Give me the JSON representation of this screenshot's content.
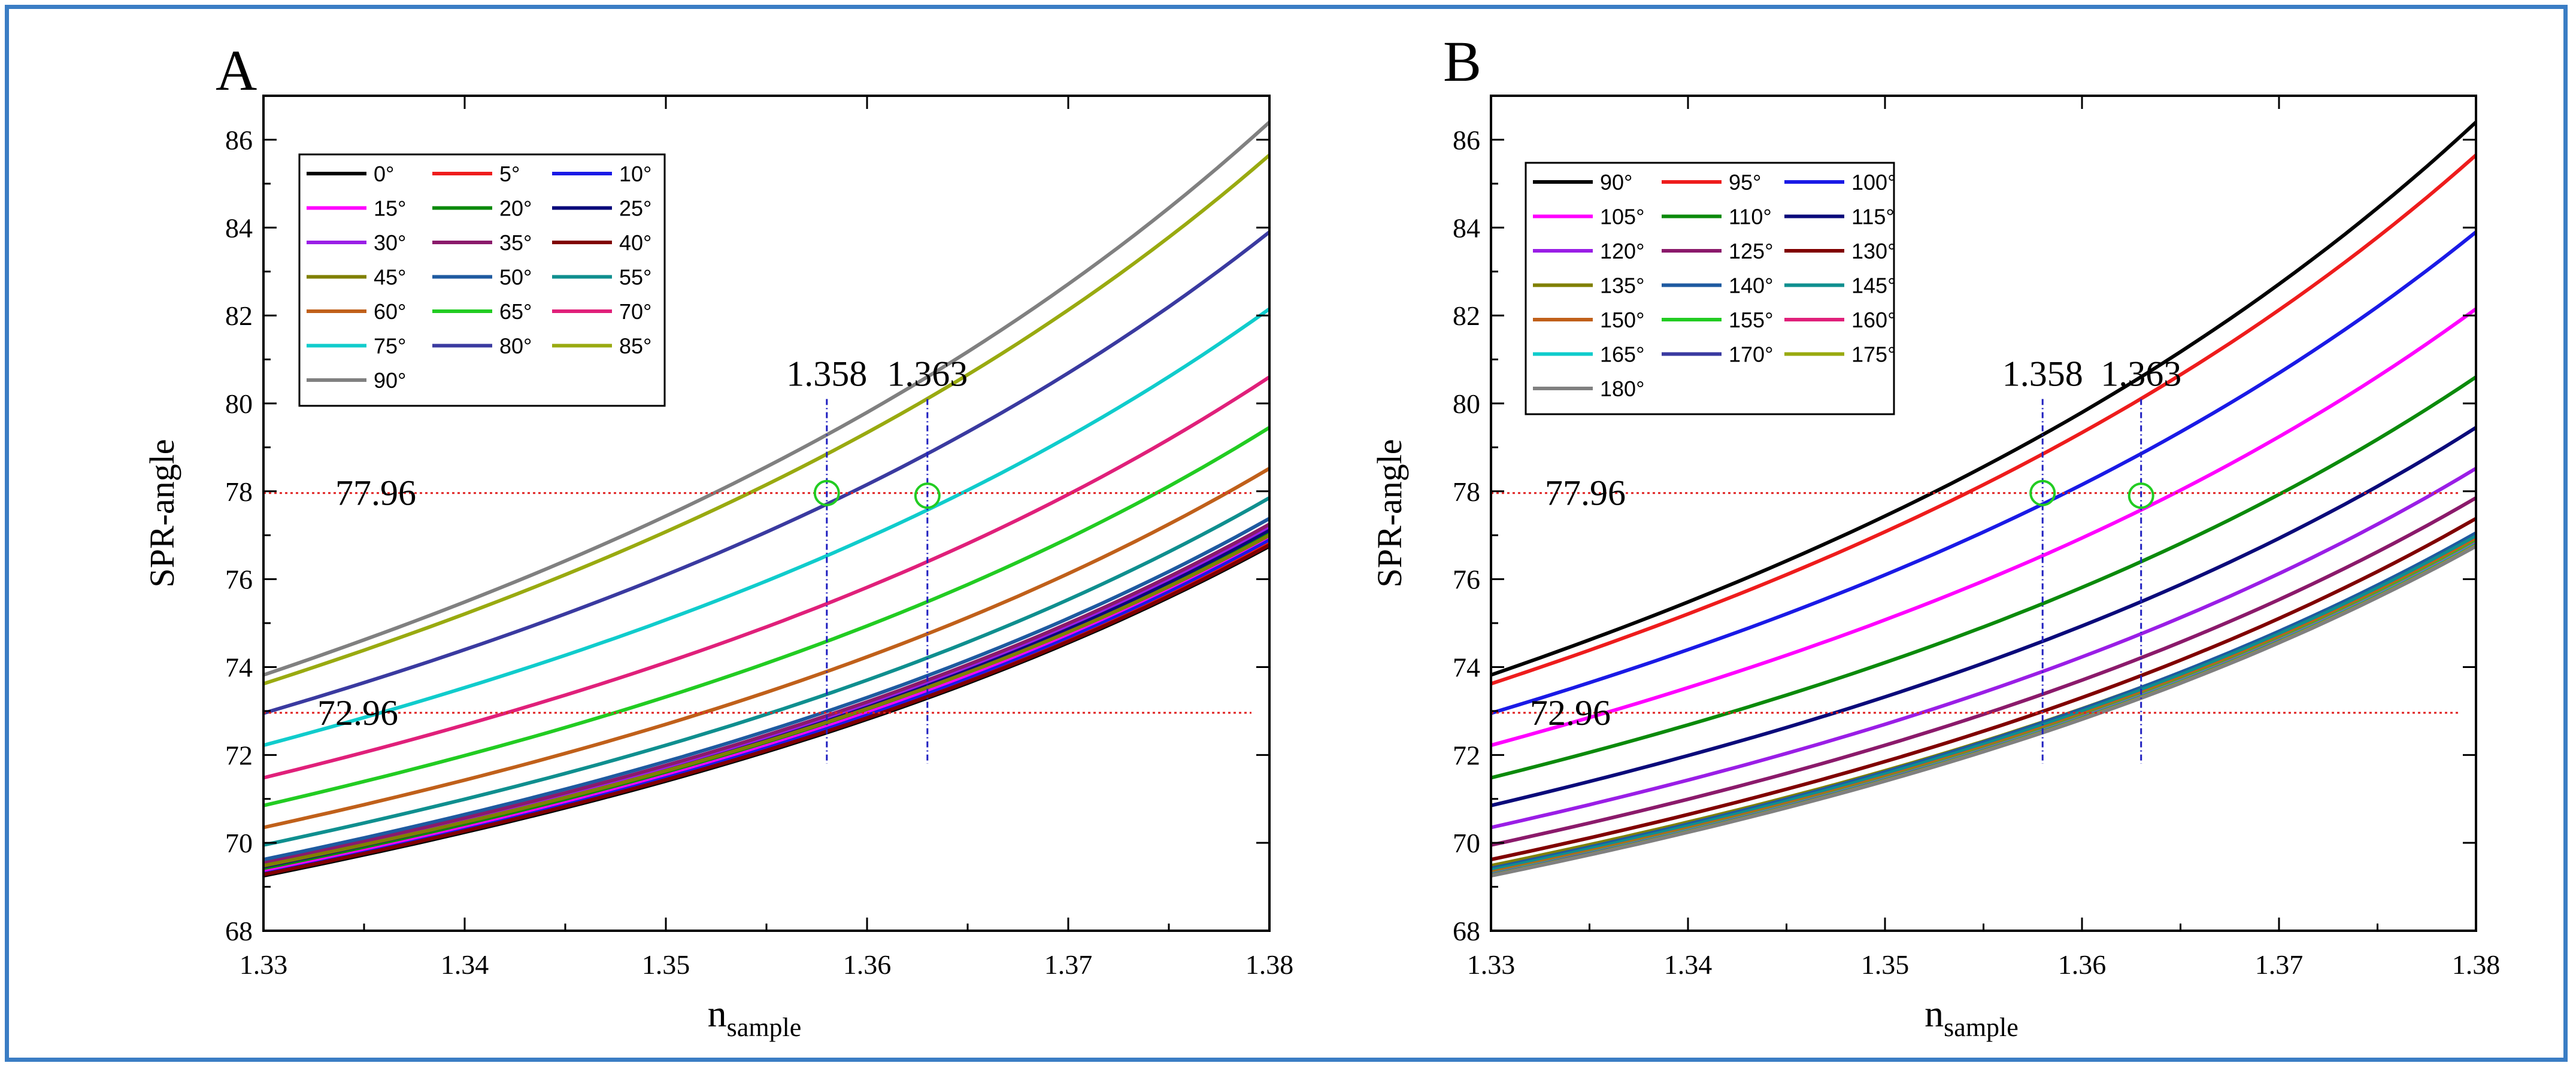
{
  "chart_data": [
    {
      "type": "line",
      "panel_label": "A",
      "ylabel": "SPR-angle",
      "xlabel_main": "n",
      "xlabel_sub": "sample",
      "xlim": [
        1.33,
        1.38
      ],
      "ylim": [
        68,
        87
      ],
      "xticks": [
        "1.33",
        "1.34",
        "1.35",
        "1.36",
        "1.37",
        "1.38"
      ],
      "yticks": [
        "68",
        "70",
        "72",
        "74",
        "76",
        "78",
        "80",
        "82",
        "84",
        "86"
      ],
      "legend_location": "top-left",
      "legend_columns": 3,
      "series": [
        {
          "name": "0°",
          "color": "#000000",
          "values": [
            69.25,
            76.75
          ]
        },
        {
          "name": "5°",
          "color": "#ee1c1c",
          "values": [
            69.3,
            76.85
          ]
        },
        {
          "name": "10°",
          "color": "#1a1ae6",
          "values": [
            69.33,
            76.9
          ]
        },
        {
          "name": "15°",
          "color": "#ff00ff",
          "values": [
            69.38,
            76.98
          ]
        },
        {
          "name": "20°",
          "color": "#0b8a0b",
          "values": [
            69.42,
            77.05
          ]
        },
        {
          "name": "25°",
          "color": "#0a0a7a",
          "values": [
            69.46,
            77.12
          ]
        },
        {
          "name": "30°",
          "color": "#9a1ee6",
          "values": [
            69.52,
            77.2
          ]
        },
        {
          "name": "35°",
          "color": "#8b1a6b",
          "values": [
            69.55,
            77.25
          ]
        },
        {
          "name": "40°",
          "color": "#800000",
          "values": [
            69.28,
            76.78
          ]
        },
        {
          "name": "45°",
          "color": "#808000",
          "values": [
            69.48,
            77.0
          ]
        },
        {
          "name": "50°",
          "color": "#1e5aa0",
          "values": [
            69.62,
            77.38
          ]
        },
        {
          "name": "55°",
          "color": "#0f8f8f",
          "values": [
            69.95,
            77.85
          ]
        },
        {
          "name": "60°",
          "color": "#c0601a",
          "values": [
            70.35,
            78.52
          ]
        },
        {
          "name": "65°",
          "color": "#22cc22",
          "values": [
            70.85,
            79.45
          ]
        },
        {
          "name": "70°",
          "color": "#e0207a",
          "values": [
            71.48,
            80.6
          ]
        },
        {
          "name": "75°",
          "color": "#10cccc",
          "values": [
            72.22,
            82.15
          ]
        },
        {
          "name": "80°",
          "color": "#3a3aa0",
          "values": [
            72.95,
            83.9
          ]
        },
        {
          "name": "85°",
          "color": "#99aa10",
          "values": [
            73.62,
            85.65
          ]
        },
        {
          "name": "90°",
          "color": "#808080",
          "values": [
            73.82,
            86.4
          ]
        }
      ],
      "reference_lines": {
        "horizontal": [
          "77.96",
          "72.96"
        ],
        "vertical": [
          "1.358",
          "1.363"
        ]
      },
      "marker_points": [
        [
          1.358,
          77.96
        ],
        [
          1.363,
          77.9
        ]
      ]
    },
    {
      "type": "line",
      "panel_label": "B",
      "ylabel": "SPR-angle",
      "xlabel_main": "n",
      "xlabel_sub": "sample",
      "xlim": [
        1.33,
        1.38
      ],
      "ylim": [
        68,
        87
      ],
      "xticks": [
        "1.33",
        "1.34",
        "1.35",
        "1.36",
        "1.37",
        "1.38"
      ],
      "yticks": [
        "68",
        "70",
        "72",
        "74",
        "76",
        "78",
        "80",
        "82",
        "84",
        "86"
      ],
      "legend_location": "top-left",
      "legend_columns": 3,
      "series": [
        {
          "name": "90°",
          "color": "#000000",
          "values": [
            73.82,
            86.4
          ]
        },
        {
          "name": "95°",
          "color": "#ee1c1c",
          "values": [
            73.62,
            85.65
          ]
        },
        {
          "name": "100°",
          "color": "#1a1ae6",
          "values": [
            72.95,
            83.9
          ]
        },
        {
          "name": "105°",
          "color": "#ff00ff",
          "values": [
            72.22,
            82.15
          ]
        },
        {
          "name": "110°",
          "color": "#0b8a0b",
          "values": [
            71.48,
            80.6
          ]
        },
        {
          "name": "115°",
          "color": "#0a0a7a",
          "values": [
            70.85,
            79.45
          ]
        },
        {
          "name": "120°",
          "color": "#9a1ee6",
          "values": [
            70.35,
            78.52
          ]
        },
        {
          "name": "125°",
          "color": "#8b1a6b",
          "values": [
            69.95,
            77.85
          ]
        },
        {
          "name": "130°",
          "color": "#800000",
          "values": [
            69.62,
            77.38
          ]
        },
        {
          "name": "135°",
          "color": "#808000",
          "values": [
            69.48,
            77.0
          ]
        },
        {
          "name": "140°",
          "color": "#1e5aa0",
          "values": [
            69.42,
            77.05
          ]
        },
        {
          "name": "145°",
          "color": "#0f8f8f",
          "values": [
            69.38,
            76.98
          ]
        },
        {
          "name": "150°",
          "color": "#c0601a",
          "values": [
            69.33,
            76.9
          ]
        },
        {
          "name": "155°",
          "color": "#22cc22",
          "values": [
            69.3,
            76.85
          ]
        },
        {
          "name": "160°",
          "color": "#e0207a",
          "values": [
            69.29,
            76.82
          ]
        },
        {
          "name": "165°",
          "color": "#10cccc",
          "values": [
            69.28,
            76.8
          ]
        },
        {
          "name": "170°",
          "color": "#3a3aa0",
          "values": [
            69.27,
            76.78
          ]
        },
        {
          "name": "175°",
          "color": "#99aa10",
          "values": [
            69.26,
            76.77
          ]
        },
        {
          "name": "180°",
          "color": "#808080",
          "values": [
            69.25,
            76.75
          ]
        }
      ],
      "reference_lines": {
        "horizontal": [
          "77.96",
          "72.96"
        ],
        "vertical": [
          "1.358",
          "1.363"
        ]
      },
      "marker_points": [
        [
          1.358,
          77.96
        ],
        [
          1.363,
          77.9
        ]
      ]
    }
  ]
}
